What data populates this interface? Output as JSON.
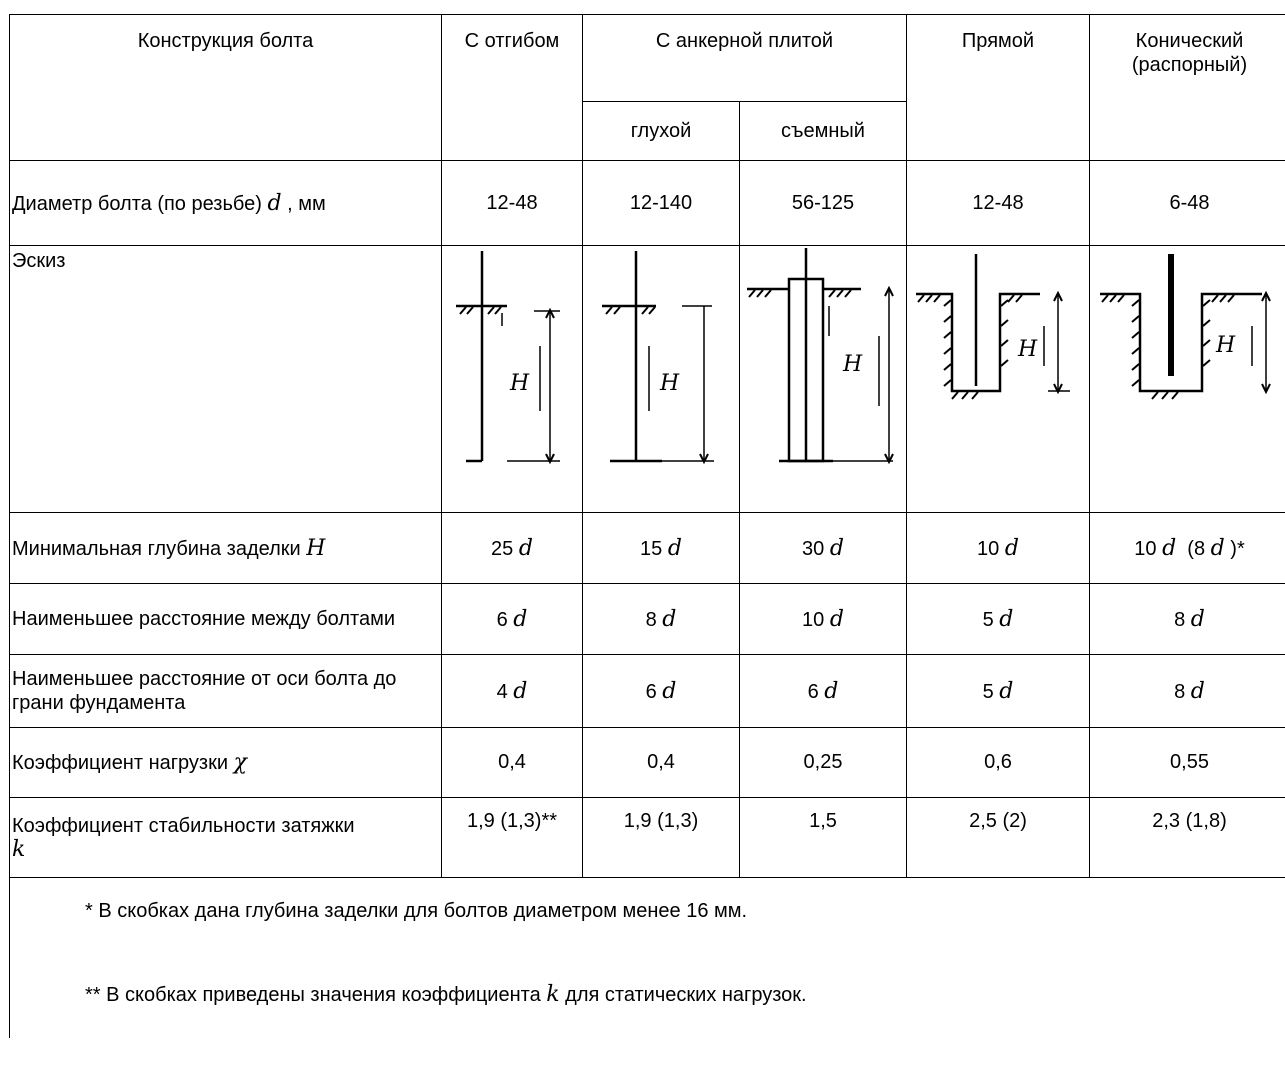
{
  "header": {
    "construction": "Конструкция болта",
    "bent": "С отгибом",
    "anchor_plate": "С анкерной плитой",
    "blind": "глухой",
    "removable": "съемный",
    "straight": "Прямой",
    "conical_1": "Конический",
    "conical_2": "(распорный)"
  },
  "rows": {
    "diameter": {
      "label_pre": "Диаметр болта (по резьбе)",
      "label_var": "d",
      "label_post": ", мм",
      "values": [
        "12-48",
        "12-140",
        "56-125",
        "12-48",
        "6-48"
      ]
    },
    "sketch": {
      "label": "Эскиз",
      "h_letter": "H"
    },
    "min_depth": {
      "label": "Минимальная глубина заделки",
      "label_var": "H",
      "coef": [
        "25",
        "15",
        "30",
        "10",
        "10"
      ],
      "var": "d",
      "extra_coef": "8",
      "extra_suffix": ")*",
      "extra_prefix": "("
    },
    "min_between": {
      "label": "Наименьшее расстояние между болтами",
      "coef": [
        "6",
        "8",
        "10",
        "5",
        "8"
      ],
      "var": "d"
    },
    "min_edge": {
      "label": "Наименьшее расстояние от оси болта до грани фундамента",
      "coef": [
        "4",
        "6",
        "6",
        "5",
        "8"
      ],
      "var": "d"
    },
    "load_coef": {
      "label": "Коэффициент нагрузки",
      "label_var": "χ",
      "values": [
        "0,4",
        "0,4",
        "0,25",
        "0,6",
        "0,55"
      ]
    },
    "stability": {
      "label": "Коэффициент стабильности затяжки",
      "label_var": "k",
      "values": [
        "1,9 (1,3)**",
        "1,9 (1,3)",
        "1,5",
        "2,5 (2)",
        "2,3 (1,8)"
      ]
    }
  },
  "notes": {
    "note1": "* В скобках дана глубина заделки для болтов диаметром менее 16 мм.",
    "note2_pre": "** В скобках приведены значения коэффициента",
    "note2_var": "k",
    "note2_post": "для статических нагрузок."
  }
}
